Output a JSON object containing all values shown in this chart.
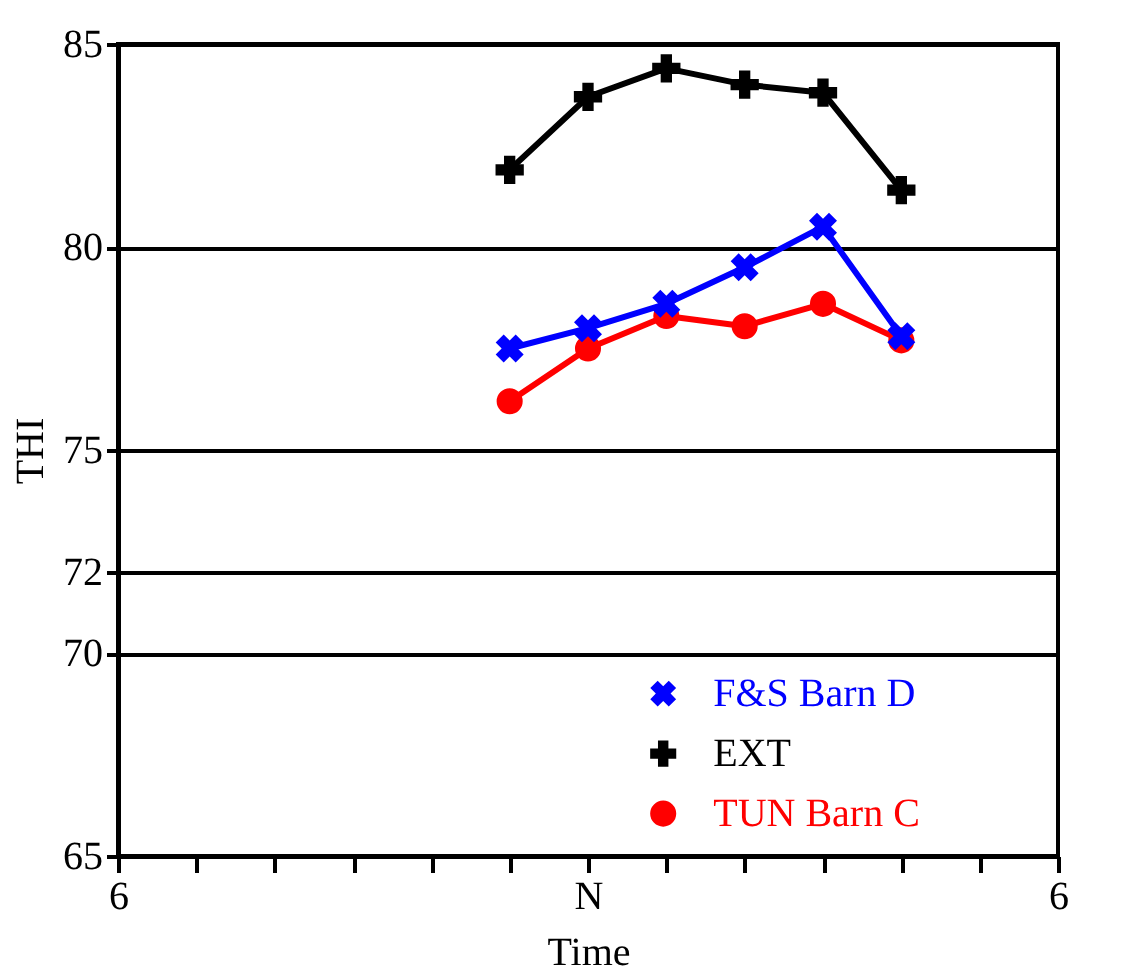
{
  "chart_data": {
    "type": "line",
    "xlabel": "Time",
    "ylabel": "THI",
    "categories": [
      "6",
      null,
      null,
      null,
      null,
      null,
      "N",
      null,
      null,
      null,
      null,
      null,
      "6"
    ],
    "ylim": [
      65,
      85
    ],
    "yticks": [
      65,
      70,
      72,
      75,
      80,
      85
    ],
    "grid": "y",
    "legend": "bottom right",
    "series": [
      {
        "name": "F&S Barn D",
        "color": "#0000ff",
        "marker": "x",
        "values": [
          null,
          null,
          null,
          null,
          null,
          77.5,
          78.0,
          78.6,
          79.5,
          80.5,
          77.8,
          null,
          null
        ]
      },
      {
        "name": "EXT",
        "color": "#000000",
        "marker": "cross",
        "values": [
          null,
          null,
          null,
          null,
          null,
          81.9,
          83.7,
          84.4,
          84.0,
          83.8,
          81.4,
          null,
          null
        ]
      },
      {
        "name": "TUN Barn C",
        "color": "#ff0000",
        "marker": "circle",
        "values": [
          null,
          null,
          null,
          null,
          null,
          76.2,
          77.5,
          78.3,
          78.05,
          78.6,
          77.7,
          null,
          null
        ]
      }
    ]
  }
}
